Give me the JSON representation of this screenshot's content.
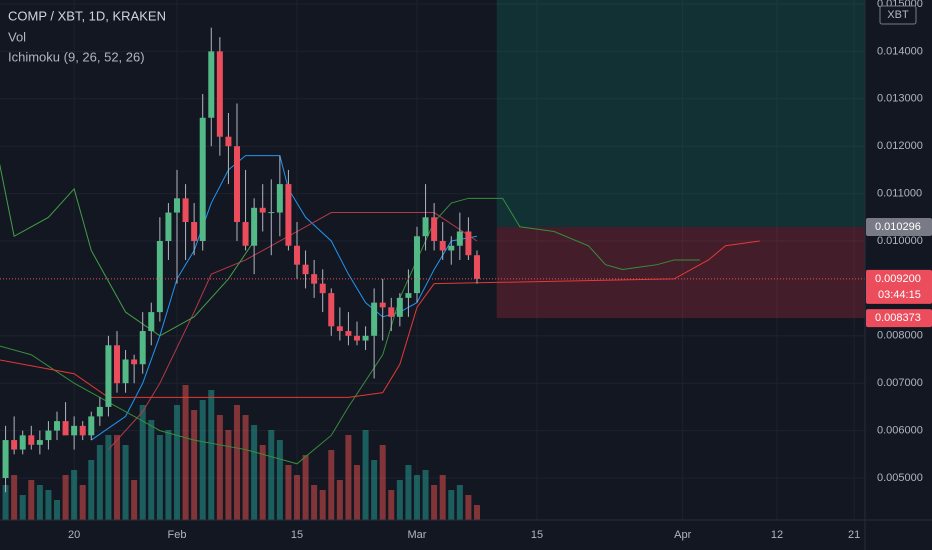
{
  "chart_data": {
    "type": "candlestick",
    "title": "COMP / XBT, 1D, KRAKEN",
    "indicators": [
      "Vol",
      "Ichimoku (9, 26, 52, 26)"
    ],
    "currency": "XBT",
    "up_color": "#53b987",
    "down_color": "#eb4d5c",
    "grid": true,
    "xlim": [
      11.35,
      112.27
    ],
    "ylim": [
      0.004114,
      0.015084
    ],
    "xticks": [
      {
        "value": 20,
        "label": "20"
      },
      {
        "value": 32,
        "label": "Feb"
      },
      {
        "value": 46,
        "label": "15"
      },
      {
        "value": 60,
        "label": "Mar"
      },
      {
        "value": 74,
        "label": "15"
      },
      {
        "value": 91,
        "label": "Apr"
      },
      {
        "value": 102,
        "label": "12"
      },
      {
        "value": 111,
        "label": "21"
      }
    ],
    "yticks": [
      {
        "value": 0.005,
        "label": "0.005000"
      },
      {
        "value": 0.006,
        "label": "0.006000"
      },
      {
        "value": 0.007,
        "label": "0.007000"
      },
      {
        "value": 0.008,
        "label": "0.008000"
      },
      {
        "value": 0.01,
        "label": "0.010000"
      },
      {
        "value": 0.011,
        "label": "0.011000"
      },
      {
        "value": 0.012,
        "label": "0.012000"
      },
      {
        "value": 0.013,
        "label": "0.013000"
      },
      {
        "value": 0.014,
        "label": "0.014000"
      },
      {
        "value": 0.015,
        "label": "0.015000"
      }
    ],
    "x": [
      12,
      13,
      14,
      15,
      16,
      17,
      18,
      19,
      20,
      21,
      22,
      23,
      24,
      25,
      26,
      27,
      28,
      29,
      30,
      31,
      32,
      33,
      34,
      35,
      36,
      37,
      38,
      39,
      40,
      41,
      42,
      43,
      44,
      45,
      46,
      47,
      48,
      49,
      50,
      51,
      52,
      53,
      54,
      55,
      56,
      57,
      58,
      59,
      60,
      61,
      62,
      63,
      64,
      65,
      66,
      67
    ],
    "open": [
      0.005,
      0.0058,
      0.0056,
      0.0059,
      0.0057,
      0.0058,
      0.006,
      0.0062,
      0.0059,
      0.0061,
      0.0059,
      0.0063,
      0.0065,
      0.0078,
      0.007,
      0.0075,
      0.0074,
      0.0081,
      0.0085,
      0.01,
      0.0106,
      0.0109,
      0.0104,
      0.01,
      0.0126,
      0.014,
      0.0122,
      0.012,
      0.0104,
      0.0099,
      0.0107,
      0.0106,
      0.0106,
      0.0112,
      0.0099,
      0.0095,
      0.0093,
      0.0091,
      0.0089,
      0.0082,
      0.0081,
      0.008,
      0.0079,
      0.008,
      0.0087,
      0.0086,
      0.0084,
      0.0088,
      0.0089,
      0.0101,
      0.0105,
      0.01,
      0.0098,
      0.0099,
      0.0102,
      0.0097
    ],
    "high": [
      0.0061,
      0.0063,
      0.006,
      0.0061,
      0.006,
      0.0062,
      0.0064,
      0.0066,
      0.0063,
      0.0062,
      0.0064,
      0.0067,
      0.008,
      0.0081,
      0.0077,
      0.0076,
      0.0085,
      0.0087,
      0.0105,
      0.0108,
      0.0115,
      0.0112,
      0.0108,
      0.0131,
      0.0145,
      0.0143,
      0.0127,
      0.0129,
      0.0115,
      0.0109,
      0.0112,
      0.0113,
      0.0118,
      0.0115,
      0.0104,
      0.0098,
      0.0096,
      0.0094,
      0.009,
      0.0086,
      0.0085,
      0.0083,
      0.0082,
      0.009,
      0.0092,
      0.0088,
      0.0089,
      0.0094,
      0.0103,
      0.0112,
      0.0108,
      0.0104,
      0.0101,
      0.0106,
      0.0105,
      0.0098
    ],
    "low": [
      0.0047,
      0.0055,
      0.0055,
      0.0056,
      0.0055,
      0.0056,
      0.0058,
      0.006,
      0.0056,
      0.0058,
      0.0058,
      0.0061,
      0.0063,
      0.0068,
      0.0068,
      0.007,
      0.0072,
      0.0078,
      0.0083,
      0.0096,
      0.0091,
      0.0096,
      0.0097,
      0.0098,
      0.012,
      0.0118,
      0.0112,
      0.01,
      0.0098,
      0.0093,
      0.0102,
      0.0097,
      0.0101,
      0.0098,
      0.0092,
      0.009,
      0.0088,
      0.0085,
      0.008,
      0.0079,
      0.0078,
      0.0078,
      0.0077,
      0.0071,
      0.0079,
      0.0081,
      0.0082,
      0.0084,
      0.0087,
      0.0098,
      0.0098,
      0.0096,
      0.0095,
      0.0096,
      0.0096,
      0.0091
    ],
    "close": [
      0.0058,
      0.0056,
      0.0059,
      0.0057,
      0.0058,
      0.006,
      0.0062,
      0.0059,
      0.0061,
      0.0059,
      0.0063,
      0.0065,
      0.0078,
      0.007,
      0.0075,
      0.0074,
      0.0081,
      0.0085,
      0.01,
      0.0106,
      0.0109,
      0.0104,
      0.01,
      0.0126,
      0.014,
      0.0122,
      0.012,
      0.0104,
      0.0099,
      0.0107,
      0.0106,
      0.01061,
      0.0112,
      0.0099,
      0.0095,
      0.0093,
      0.0091,
      0.0089,
      0.0082,
      0.0081,
      0.008,
      0.0079,
      0.008,
      0.0087,
      0.0086,
      0.0084,
      0.0088,
      0.0089,
      0.0101,
      0.0105,
      0.01,
      0.0098,
      0.0099,
      0.0102,
      0.0097,
      0.0092
    ],
    "volume": [
      35,
      45,
      25,
      40,
      35,
      30,
      20,
      45,
      50,
      35,
      60,
      75,
      85,
      85,
      75,
      40,
      115,
      100,
      85,
      90,
      115,
      135,
      110,
      120,
      130,
      105,
      90,
      115,
      105,
      95,
      75,
      90,
      80,
      55,
      45,
      65,
      35,
      30,
      70,
      40,
      85,
      55,
      90,
      60,
      75,
      30,
      40,
      55,
      45,
      50,
      35,
      45,
      30,
      35,
      25,
      15
    ],
    "overlays": [
      {
        "color": "#2196f3",
        "x": [
          22,
          26,
          28,
          30,
          32,
          34,
          36,
          38,
          40,
          44,
          45,
          47,
          50,
          52,
          54,
          56,
          58,
          60,
          62,
          64,
          67
        ],
        "values": [
          0.0058,
          0.0063,
          0.007,
          0.008,
          0.0092,
          0.0098,
          0.0108,
          0.0115,
          0.0118,
          0.0118,
          0.0111,
          0.0105,
          0.01,
          0.0093,
          0.0087,
          0.0084,
          0.0085,
          0.0087,
          0.0094,
          0.01,
          0.0101
        ]
      },
      {
        "color": "#b23a48",
        "x": [
          24,
          28,
          30,
          34,
          36,
          40,
          46,
          50,
          56,
          60,
          62,
          67
        ],
        "values": [
          0.0056,
          0.0064,
          0.007,
          0.0085,
          0.0093,
          0.0096,
          0.0102,
          0.0106,
          0.0106,
          0.0106,
          0.0106,
          0.01
        ]
      },
      {
        "color": "#43a047",
        "x": [
          11,
          13,
          15,
          17,
          20,
          22,
          26,
          30,
          34,
          38,
          41
        ],
        "values": [
          0.0119,
          0.0101,
          0.0103,
          0.0105,
          0.0111,
          0.0098,
          0.0085,
          0.008,
          0.0084,
          0.0092,
          0.01
        ]
      },
      {
        "color": "#388e3c",
        "x": [
          11,
          15,
          20,
          24,
          28,
          30,
          34,
          40,
          46,
          50,
          52,
          56,
          58,
          60,
          62,
          64,
          66,
          70,
          72,
          76,
          80,
          82,
          84,
          88,
          90,
          93
        ],
        "values": [
          0.0078,
          0.0076,
          0.007,
          0.0066,
          0.0062,
          0.006,
          0.0058,
          0.0056,
          0.0053,
          0.0059,
          0.0065,
          0.0076,
          0.0088,
          0.0096,
          0.0104,
          0.0108,
          0.0109,
          0.0109,
          0.0103,
          0.0102,
          0.0099,
          0.0095,
          0.0094,
          0.0095,
          0.0096,
          0.0096
        ]
      },
      {
        "color": "#e53935",
        "x": [
          11,
          20,
          24,
          28,
          34,
          52,
          56,
          58,
          60,
          62,
          90,
          94,
          96,
          100
        ],
        "values": [
          0.0075,
          0.0072,
          0.0067,
          0.0067,
          0.0067,
          0.0067,
          0.0068,
          0.0074,
          0.0086,
          0.0091,
          0.0092,
          0.0096,
          0.0099,
          0.01
        ]
      }
    ],
    "position": {
      "start": 69.3,
      "entry": {
        "value": 0.010296,
        "label": "0.010296"
      },
      "stop": {
        "value": 0.008373,
        "label": "0.008373"
      }
    },
    "last_price": {
      "value": 0.0092,
      "label": "0.009200",
      "countdown": "03:44:15"
    }
  }
}
